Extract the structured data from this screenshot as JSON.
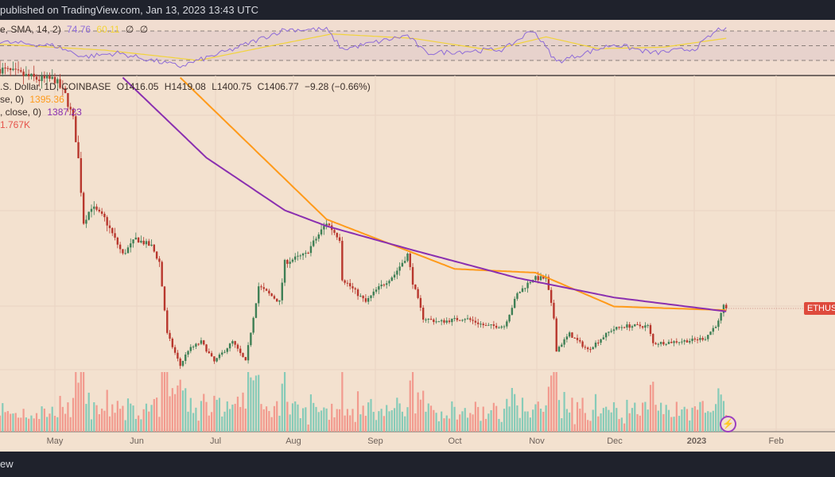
{
  "header": {
    "published_text": "published on TradingView.com, Jan 13, 2023 13:43 UTC"
  },
  "footer": {
    "brand_text": "ew"
  },
  "rsi_legend": {
    "label": "e, SMA, 14, 2)",
    "rsi_value": "74.76",
    "sma_value": "60.11",
    "extra1": "∅",
    "extra2": "∅"
  },
  "price_legend": {
    "symbol": ".S. Dollar, 1D, COINBASE",
    "open": "O1416.05",
    "high": "H1419.08",
    "low": "L1400.75",
    "close": "C1406.77",
    "change": "−9.28 (−0.66%)"
  },
  "ma1_legend": {
    "label": "se, 0)",
    "value": "1395.36"
  },
  "ma2_legend": {
    "label": ", close, 0)",
    "value": "1387.23"
  },
  "volume_legend": {
    "value": "1.767K"
  },
  "price_tag": "ETHUS",
  "colors": {
    "up": "#3e7f55",
    "down": "#b8372d",
    "vol_up": "#86cbb8",
    "vol_down": "#f29a8e",
    "ma_orange": "#ff9a1a",
    "ma_purple": "#8a2fb0",
    "rsi": "#8e6bd8",
    "rsi_sma": "#f2d33a",
    "tag": "#de4a3c"
  },
  "chart_data": {
    "type": "candlestick",
    "symbol": "ETHUSD",
    "interval": "1D",
    "last_close": 1406.77,
    "x_ticks": [
      "May",
      "Jun",
      "Jul",
      "Aug",
      "Sep",
      "Oct",
      "Nov",
      "Dec",
      "2023",
      "Feb"
    ],
    "close_anchors": [
      [
        "2022-04-10",
        3000
      ],
      [
        "2022-04-25",
        2930
      ],
      [
        "2022-05-01",
        2930
      ],
      [
        "2022-05-05",
        2825
      ],
      [
        "2022-05-08",
        2665
      ],
      [
        "2022-05-10",
        2400
      ],
      [
        "2022-05-12",
        1980
      ],
      [
        "2022-05-15",
        2085
      ],
      [
        "2022-05-20",
        2005
      ],
      [
        "2022-05-27",
        1765
      ],
      [
        "2022-06-01",
        1870
      ],
      [
        "2022-06-07",
        1820
      ],
      [
        "2022-06-10",
        1715
      ],
      [
        "2022-06-13",
        1237
      ],
      [
        "2022-06-18",
        1026
      ],
      [
        "2022-06-21",
        1130
      ],
      [
        "2022-06-26",
        1185
      ],
      [
        "2022-07-01",
        1052
      ],
      [
        "2022-07-08",
        1185
      ],
      [
        "2022-07-13",
        1052
      ],
      [
        "2022-07-18",
        1555
      ],
      [
        "2022-07-26",
        1450
      ],
      [
        "2022-07-28",
        1713
      ],
      [
        "2022-08-05",
        1766
      ],
      [
        "2022-08-13",
        1978
      ],
      [
        "2022-08-18",
        1872
      ],
      [
        "2022-08-19",
        1607
      ],
      [
        "2022-08-28",
        1449
      ],
      [
        "2022-09-01",
        1528
      ],
      [
        "2022-09-08",
        1634
      ],
      [
        "2022-09-13",
        1766
      ],
      [
        "2022-09-15",
        1581
      ],
      [
        "2022-09-19",
        1343
      ],
      [
        "2022-09-25",
        1317
      ],
      [
        "2022-10-05",
        1343
      ],
      [
        "2022-10-13",
        1290
      ],
      [
        "2022-10-20",
        1290
      ],
      [
        "2022-10-25",
        1502
      ],
      [
        "2022-10-31",
        1607
      ],
      [
        "2022-11-05",
        1607
      ],
      [
        "2022-11-08",
        1343
      ],
      [
        "2022-11-09",
        1131
      ],
      [
        "2022-11-14",
        1237
      ],
      [
        "2022-11-21",
        1131
      ],
      [
        "2022-11-30",
        1264
      ],
      [
        "2022-12-05",
        1290
      ],
      [
        "2022-12-14",
        1290
      ],
      [
        "2022-12-16",
        1174
      ],
      [
        "2022-12-31",
        1195
      ],
      [
        "2023-01-05",
        1211
      ],
      [
        "2023-01-10",
        1317
      ],
      [
        "2023-01-12",
        1417
      ],
      [
        "2023-01-13",
        1406.77
      ]
    ],
    "ma_orange_anchors": [
      [
        "2022-06-17",
        2960
      ],
      [
        "2022-08-13",
        2000
      ],
      [
        "2022-10-01",
        1670
      ],
      [
        "2022-11-01",
        1645
      ],
      [
        "2022-12-01",
        1420
      ],
      [
        "2023-01-13",
        1395.36
      ]
    ],
    "ma_purple_anchors": [
      [
        "2022-05-26",
        2960
      ],
      [
        "2022-06-28",
        2410
      ],
      [
        "2022-07-28",
        2060
      ],
      [
        "2022-08-13",
        1955
      ],
      [
        "2022-09-15",
        1795
      ],
      [
        "2022-10-25",
        1610
      ],
      [
        "2022-12-01",
        1480
      ],
      [
        "2023-01-13",
        1387.23
      ]
    ],
    "rsi_levels": [
      70,
      50,
      30
    ],
    "rsi_anchors": [
      [
        "2022-04-10",
        55
      ],
      [
        "2022-05-01",
        50
      ],
      [
        "2022-05-12",
        35
      ],
      [
        "2022-05-25",
        40
      ],
      [
        "2022-06-18",
        22
      ],
      [
        "2022-07-08",
        45
      ],
      [
        "2022-07-28",
        72
      ],
      [
        "2022-08-13",
        72
      ],
      [
        "2022-08-19",
        45
      ],
      [
        "2022-09-13",
        64
      ],
      [
        "2022-09-20",
        40
      ],
      [
        "2022-10-20",
        45
      ],
      [
        "2022-10-31",
        72
      ],
      [
        "2022-11-09",
        28
      ],
      [
        "2022-12-01",
        52
      ],
      [
        "2022-12-16",
        40
      ],
      [
        "2023-01-01",
        46
      ],
      [
        "2023-01-10",
        72
      ],
      [
        "2023-01-13",
        74.76
      ]
    ],
    "rsi_sma_anchors": [
      [
        "2022-04-10",
        52
      ],
      [
        "2022-05-20",
        44
      ],
      [
        "2022-06-25",
        30
      ],
      [
        "2022-07-20",
        48
      ],
      [
        "2022-08-15",
        66
      ],
      [
        "2022-09-15",
        60
      ],
      [
        "2022-10-15",
        44
      ],
      [
        "2022-11-05",
        62
      ],
      [
        "2022-11-25",
        46
      ],
      [
        "2022-12-20",
        48
      ],
      [
        "2023-01-13",
        60.11
      ]
    ]
  }
}
